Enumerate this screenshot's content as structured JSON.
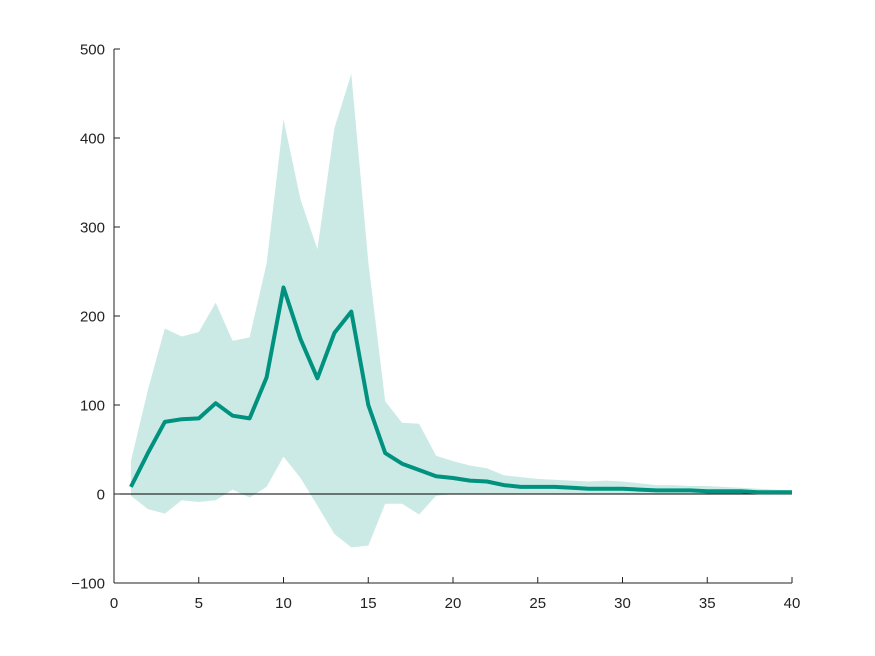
{
  "chart_data": {
    "type": "line",
    "title": "",
    "xlabel": "",
    "ylabel": "",
    "xlim": [
      0,
      40
    ],
    "ylim": [
      -100,
      500
    ],
    "x_ticks": [
      0,
      5,
      10,
      15,
      20,
      25,
      30,
      35,
      40
    ],
    "y_ticks": [
      -100,
      0,
      100,
      200,
      300,
      400,
      500
    ],
    "x_tick_labels": [
      "0",
      "5",
      "10",
      "15",
      "20",
      "25",
      "30",
      "35",
      "40"
    ],
    "y_tick_labels": [
      "−100",
      "0",
      "100",
      "200",
      "300",
      "400",
      "500"
    ],
    "grid": false,
    "zero_line": true,
    "colors": {
      "line": "#00927f",
      "band": "#cceae5",
      "axis": "#222222"
    },
    "x": [
      1,
      2,
      3,
      4,
      5,
      6,
      7,
      8,
      9,
      10,
      11,
      12,
      13,
      14,
      15,
      16,
      17,
      18,
      19,
      20,
      21,
      22,
      23,
      24,
      25,
      26,
      27,
      28,
      29,
      30,
      31,
      32,
      33,
      34,
      35,
      36,
      37,
      38,
      39,
      40
    ],
    "series": [
      {
        "values": [
          8,
          46,
          81,
          84,
          85,
          102,
          88,
          85,
          131,
          232,
          174,
          130,
          181,
          205,
          100,
          46,
          34,
          27,
          20,
          18,
          15,
          14,
          10,
          8,
          8,
          8,
          7,
          6,
          6,
          6,
          5,
          4,
          4,
          4,
          3,
          3,
          3,
          2,
          2,
          2
        ],
        "lower": [
          -2,
          -17,
          -22,
          -7,
          -9,
          -7,
          5,
          -4,
          8,
          42,
          18,
          -13,
          -45,
          -60,
          -58,
          -11,
          -11,
          -23,
          -2,
          0,
          0,
          0,
          0,
          0,
          0,
          0,
          0,
          0,
          0,
          0,
          0,
          0,
          0,
          0,
          0,
          0,
          0,
          0,
          0,
          0
        ],
        "upper": [
          37,
          117,
          186,
          177,
          182,
          215,
          172,
          176,
          259,
          421,
          331,
          275,
          411,
          472,
          261,
          104,
          80,
          79,
          43,
          37,
          32,
          29,
          21,
          19,
          17,
          16,
          15,
          14,
          15,
          14,
          12,
          10,
          10,
          9,
          9,
          8,
          7,
          6,
          5,
          4
        ]
      }
    ]
  }
}
